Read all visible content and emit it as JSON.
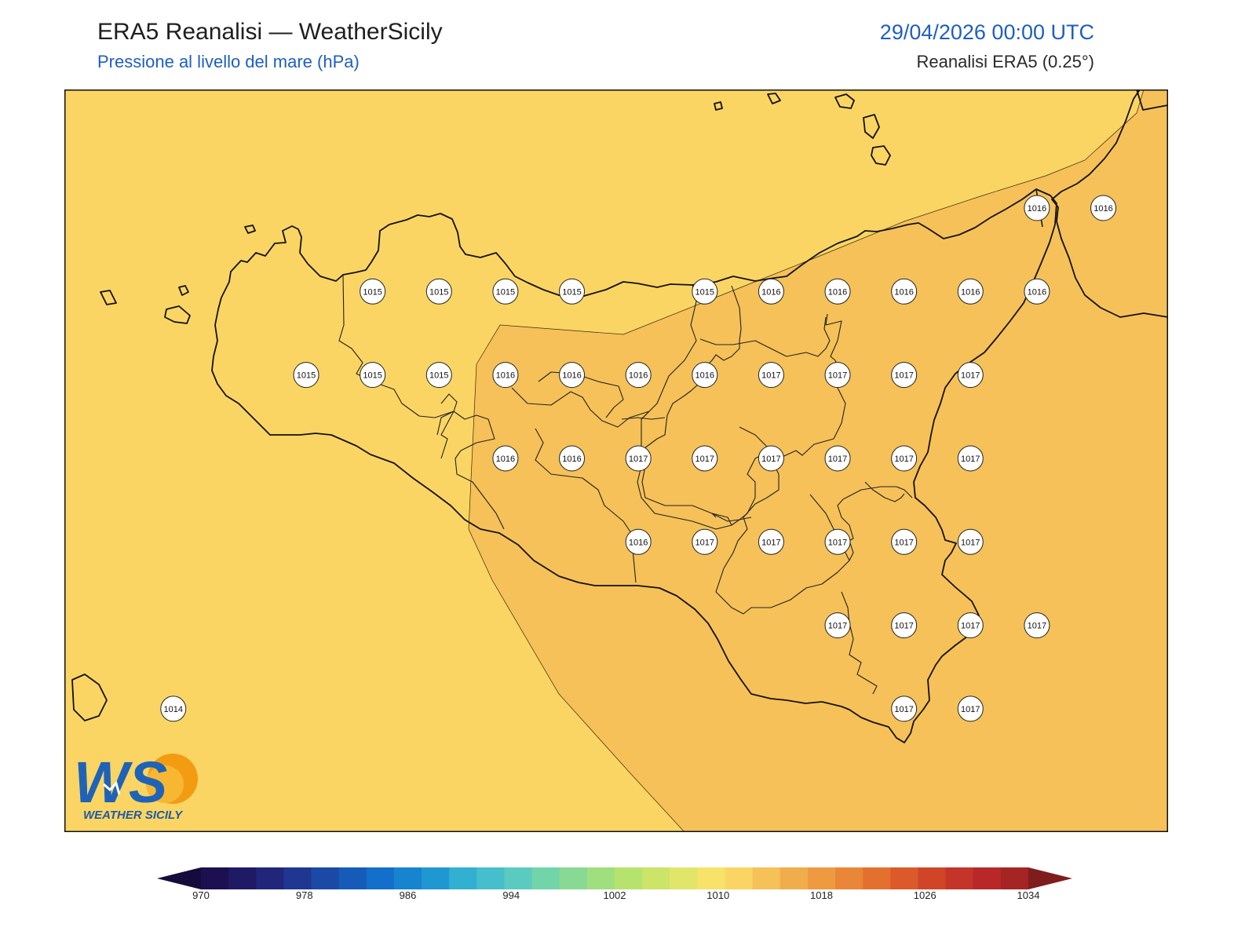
{
  "header": {
    "title": "ERA5 Reanalisi — WeatherSicily",
    "subtitle": "Pressione al livello del mare (hPa)",
    "datetime": "29/04/2026 00:00 UTC",
    "source": "Reanalisi ERA5 (0.25°)"
  },
  "map": {
    "region": "Sicily",
    "field": "mean sea level pressure",
    "fill_colors": {
      "1014-1018": "#fad563",
      "1018-1022": "#f5c158"
    },
    "stations": [
      {
        "value": "1016",
        "lat": 38.25,
        "lon": 15.25
      },
      {
        "value": "1016",
        "lat": 38.25,
        "lon": 15.5
      },
      {
        "value": "1015",
        "lat": 38.0,
        "lon": 12.75
      },
      {
        "value": "1015",
        "lat": 38.0,
        "lon": 13.0
      },
      {
        "value": "1015",
        "lat": 38.0,
        "lon": 13.25
      },
      {
        "value": "1015",
        "lat": 38.0,
        "lon": 13.5
      },
      {
        "value": "1015",
        "lat": 38.0,
        "lon": 14.0
      },
      {
        "value": "1016",
        "lat": 38.0,
        "lon": 14.25
      },
      {
        "value": "1016",
        "lat": 38.0,
        "lon": 14.5
      },
      {
        "value": "1016",
        "lat": 38.0,
        "lon": 14.75
      },
      {
        "value": "1016",
        "lat": 38.0,
        "lon": 15.0
      },
      {
        "value": "1016",
        "lat": 38.0,
        "lon": 15.25
      },
      {
        "value": "1015",
        "lat": 37.75,
        "lon": 12.5
      },
      {
        "value": "1015",
        "lat": 37.75,
        "lon": 12.75
      },
      {
        "value": "1015",
        "lat": 37.75,
        "lon": 13.0
      },
      {
        "value": "1016",
        "lat": 37.75,
        "lon": 13.25
      },
      {
        "value": "1016",
        "lat": 37.75,
        "lon": 13.5
      },
      {
        "value": "1016",
        "lat": 37.75,
        "lon": 13.75
      },
      {
        "value": "1016",
        "lat": 37.75,
        "lon": 14.0
      },
      {
        "value": "1017",
        "lat": 37.75,
        "lon": 14.25
      },
      {
        "value": "1017",
        "lat": 37.75,
        "lon": 14.5
      },
      {
        "value": "1017",
        "lat": 37.75,
        "lon": 14.75
      },
      {
        "value": "1017",
        "lat": 37.75,
        "lon": 15.0
      },
      {
        "value": "1016",
        "lat": 37.5,
        "lon": 13.25
      },
      {
        "value": "1016",
        "lat": 37.5,
        "lon": 13.5
      },
      {
        "value": "1017",
        "lat": 37.5,
        "lon": 13.75
      },
      {
        "value": "1017",
        "lat": 37.5,
        "lon": 14.0
      },
      {
        "value": "1017",
        "lat": 37.5,
        "lon": 14.25
      },
      {
        "value": "1017",
        "lat": 37.5,
        "lon": 14.5
      },
      {
        "value": "1017",
        "lat": 37.5,
        "lon": 14.75
      },
      {
        "value": "1017",
        "lat": 37.5,
        "lon": 15.0
      },
      {
        "value": "1016",
        "lat": 37.25,
        "lon": 13.75
      },
      {
        "value": "1017",
        "lat": 37.25,
        "lon": 14.0
      },
      {
        "value": "1017",
        "lat": 37.25,
        "lon": 14.25
      },
      {
        "value": "1017",
        "lat": 37.25,
        "lon": 14.5
      },
      {
        "value": "1017",
        "lat": 37.25,
        "lon": 14.75
      },
      {
        "value": "1017",
        "lat": 37.25,
        "lon": 15.0
      },
      {
        "value": "1017",
        "lat": 37.0,
        "lon": 14.5
      },
      {
        "value": "1017",
        "lat": 37.0,
        "lon": 14.75
      },
      {
        "value": "1017",
        "lat": 37.0,
        "lon": 15.0
      },
      {
        "value": "1017",
        "lat": 37.0,
        "lon": 15.25
      },
      {
        "value": "1014",
        "lat": 36.75,
        "lon": 12.0
      },
      {
        "value": "1017",
        "lat": 36.75,
        "lon": 14.75
      },
      {
        "value": "1017",
        "lat": 36.75,
        "lon": 15.0
      }
    ]
  },
  "logo": {
    "initials": "WS",
    "name": "WEATHER SICILY"
  },
  "colorbar": {
    "min": 970,
    "max": 1034,
    "step": 2,
    "extend": "both",
    "tick_labels": [
      "970",
      "978",
      "986",
      "994",
      "1002",
      "1010",
      "1018",
      "1026",
      "1034"
    ],
    "colors": [
      "#1c1050",
      "#201a66",
      "#22267a",
      "#1f3790",
      "#1b49a6",
      "#175bb8",
      "#136fc9",
      "#1784cf",
      "#1f98d2",
      "#32b0d2",
      "#45bfcb",
      "#5ccbbf",
      "#72d4a9",
      "#88d993",
      "#9fdf7f",
      "#b6e36e",
      "#cce468",
      "#e0e66a",
      "#f7e26a",
      "#fad563",
      "#f5c158",
      "#f0ad4c",
      "#ee9a41",
      "#ea8637",
      "#e4702f",
      "#dc5a2a",
      "#d04528",
      "#c53428",
      "#b82828",
      "#a52424"
    ],
    "under_color": "#150c3c",
    "over_color": "#7f1d1d"
  }
}
